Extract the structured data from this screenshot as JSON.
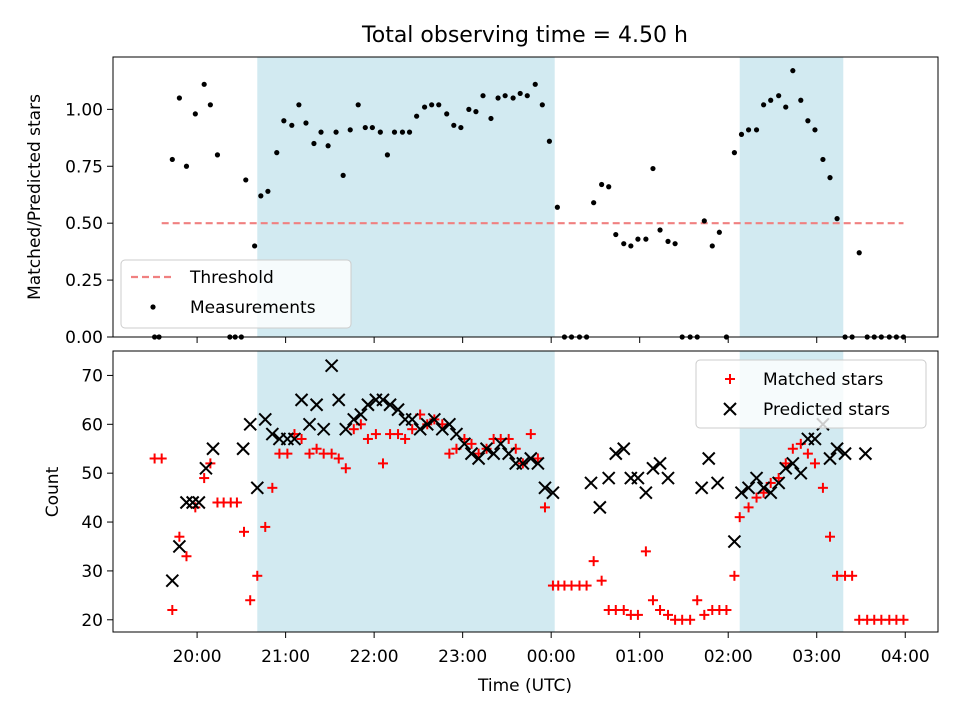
{
  "chart_data": [
    {
      "type": "scatter",
      "title": "Total observing time = 4.50 h",
      "ylabel": "Matched/Predicted stars",
      "xlabel": "",
      "ylim": [
        0,
        1.23
      ],
      "yticks": [
        "0.00",
        "0.25",
        "0.50",
        "0.75",
        "1.00"
      ],
      "ytick_values": [
        0,
        0.25,
        0.5,
        0.75,
        1.0
      ],
      "legend_position": "lower-left",
      "grid": false,
      "shaded_intervals_hours": [
        [
          20.68,
          24.04
        ],
        [
          26.13,
          27.3
        ]
      ],
      "threshold": {
        "name": "Threshold",
        "y": 0.5,
        "x_range": [
          19.6,
          27.98
        ],
        "color": "#f08080"
      },
      "series": [
        {
          "name": "Measurements",
          "color": "#000000",
          "x": [
            19.52,
            19.57,
            19.72,
            19.8,
            19.88,
            19.98,
            20.08,
            20.15,
            20.23,
            20.37,
            20.43,
            20.5,
            20.55,
            20.65,
            20.72,
            20.8,
            20.9,
            20.98,
            21.07,
            21.15,
            21.23,
            21.32,
            21.4,
            21.48,
            21.57,
            21.65,
            21.73,
            21.82,
            21.9,
            21.98,
            22.07,
            22.15,
            22.23,
            22.32,
            22.4,
            22.48,
            22.57,
            22.65,
            22.73,
            22.82,
            22.9,
            22.98,
            23.07,
            23.15,
            23.23,
            23.32,
            23.4,
            23.48,
            23.57,
            23.65,
            23.73,
            23.82,
            23.9,
            23.98,
            24.07,
            24.15,
            24.23,
            24.32,
            24.4,
            24.48,
            24.57,
            24.65,
            24.73,
            24.82,
            24.9,
            24.98,
            25.07,
            25.15,
            25.23,
            25.32,
            25.4,
            25.48,
            25.57,
            25.65,
            25.73,
            25.82,
            25.9,
            25.98,
            26.07,
            26.15,
            26.23,
            26.32,
            26.4,
            26.48,
            26.57,
            26.65,
            26.73,
            26.82,
            26.9,
            26.98,
            27.07,
            27.15,
            27.23,
            27.32,
            27.4,
            27.48,
            27.57,
            27.65,
            27.73,
            27.82,
            27.9,
            27.98
          ],
          "y": [
            0.0,
            0.0,
            0.78,
            1.05,
            0.75,
            0.98,
            1.11,
            1.02,
            0.8,
            0.0,
            0.0,
            0.0,
            0.69,
            0.4,
            0.62,
            0.64,
            0.81,
            0.95,
            0.93,
            1.02,
            0.94,
            0.85,
            0.9,
            0.84,
            0.9,
            0.71,
            0.91,
            1.02,
            0.92,
            0.92,
            0.9,
            0.8,
            0.9,
            0.9,
            0.9,
            0.97,
            1.01,
            1.02,
            1.02,
            0.98,
            0.93,
            0.92,
            1.0,
            0.99,
            1.06,
            0.96,
            1.05,
            1.06,
            1.05,
            1.07,
            1.06,
            1.11,
            1.02,
            0.86,
            0.57,
            0.0,
            0.0,
            0.0,
            0.0,
            0.59,
            0.67,
            0.66,
            0.45,
            0.41,
            0.4,
            0.43,
            0.43,
            0.74,
            0.47,
            0.42,
            0.41,
            0.0,
            0.0,
            0.0,
            0.51,
            0.4,
            0.46,
            0.0,
            0.81,
            0.89,
            0.91,
            0.91,
            1.02,
            1.04,
            1.06,
            1.01,
            1.17,
            1.04,
            0.95,
            0.91,
            0.78,
            0.7,
            0.52,
            0.0,
            0.0,
            0.37,
            0.0,
            0.0,
            0.0,
            0.0,
            0.0,
            0.0
          ]
        }
      ]
    },
    {
      "type": "scatter",
      "title": "",
      "xlabel": "Time (UTC)",
      "ylabel": "Count",
      "ylim": [
        17.5,
        75
      ],
      "yticks": [
        "20",
        "30",
        "40",
        "50",
        "60",
        "70"
      ],
      "ytick_values": [
        20,
        30,
        40,
        50,
        60,
        70
      ],
      "xlim_hours": [
        19.05,
        28.37
      ],
      "xticks": [
        "20:00",
        "21:00",
        "22:00",
        "23:00",
        "00:00",
        "01:00",
        "02:00",
        "03:00",
        "04:00"
      ],
      "xtick_values_hours": [
        20,
        21,
        22,
        23,
        24,
        25,
        26,
        27,
        28
      ],
      "legend_position": "upper-right",
      "grid": false,
      "shaded_intervals_hours": [
        [
          20.68,
          24.04
        ],
        [
          26.13,
          27.3
        ]
      ],
      "series": [
        {
          "name": "Matched stars",
          "marker": "+",
          "color": "#ff0000",
          "x": [
            19.52,
            19.6,
            19.72,
            19.8,
            19.88,
            19.98,
            20.08,
            20.15,
            20.23,
            20.3,
            20.38,
            20.45,
            20.53,
            20.6,
            20.68,
            20.77,
            20.85,
            20.93,
            21.02,
            21.1,
            21.18,
            21.27,
            21.35,
            21.43,
            21.52,
            21.6,
            21.68,
            21.77,
            21.85,
            21.93,
            22.02,
            22.1,
            22.18,
            22.27,
            22.35,
            22.43,
            22.52,
            22.6,
            22.68,
            22.77,
            22.85,
            22.93,
            23.02,
            23.1,
            23.18,
            23.27,
            23.35,
            23.43,
            23.52,
            23.6,
            23.68,
            23.77,
            23.85,
            23.93,
            24.02,
            24.08,
            24.15,
            24.23,
            24.32,
            24.4,
            24.48,
            24.57,
            24.65,
            24.73,
            24.82,
            24.9,
            24.98,
            25.07,
            25.15,
            25.23,
            25.32,
            25.4,
            25.48,
            25.57,
            25.65,
            25.73,
            25.82,
            25.9,
            25.98,
            26.07,
            26.13,
            26.23,
            26.32,
            26.4,
            26.48,
            26.57,
            26.65,
            26.73,
            26.82,
            26.9,
            26.98,
            27.07,
            27.15,
            27.23,
            27.32,
            27.4,
            27.48,
            27.57,
            27.65,
            27.73,
            27.82,
            27.9,
            27.98
          ],
          "y": [
            53,
            53,
            22,
            37,
            33,
            43,
            49,
            52,
            44,
            44,
            44,
            44,
            38,
            24,
            29,
            39,
            47,
            54,
            54,
            58,
            57,
            54,
            55,
            54,
            54,
            53,
            51,
            59,
            60,
            57,
            58,
            52,
            58,
            58,
            57,
            59,
            62,
            60,
            61,
            60,
            54,
            55,
            57,
            56,
            54,
            55,
            57,
            57,
            57,
            55,
            52,
            58,
            53,
            43,
            27,
            27,
            27,
            27,
            27,
            27,
            32,
            28,
            22,
            22,
            22,
            21,
            21,
            34,
            24,
            22,
            21,
            20,
            20,
            20,
            24,
            21,
            22,
            22,
            22,
            29,
            41,
            43,
            45,
            46,
            48,
            49,
            52,
            55,
            56,
            54,
            52,
            47,
            37,
            29,
            29,
            29,
            20,
            20,
            20,
            20,
            20,
            20,
            20
          ]
        },
        {
          "name": "Predicted stars",
          "marker": "x",
          "color": "#000000",
          "x": [
            19.72,
            19.8,
            19.88,
            19.95,
            20.02,
            20.1,
            20.18,
            20.52,
            20.6,
            20.68,
            20.77,
            20.85,
            20.93,
            21.02,
            21.1,
            21.18,
            21.27,
            21.35,
            21.43,
            21.52,
            21.6,
            21.68,
            21.77,
            21.85,
            21.93,
            22.02,
            22.1,
            22.18,
            22.27,
            22.35,
            22.43,
            22.52,
            22.6,
            22.68,
            22.77,
            22.85,
            22.93,
            23.02,
            23.1,
            23.18,
            23.27,
            23.35,
            23.43,
            23.52,
            23.6,
            23.68,
            23.77,
            23.85,
            23.93,
            24.02,
            24.45,
            24.55,
            24.65,
            24.73,
            24.82,
            24.9,
            24.98,
            25.07,
            25.15,
            25.23,
            25.32,
            25.7,
            25.78,
            25.88,
            26.07,
            26.15,
            26.23,
            26.32,
            26.4,
            26.48,
            26.57,
            26.65,
            26.73,
            26.82,
            26.9,
            26.98,
            27.07,
            27.15,
            27.23,
            27.32,
            27.55
          ],
          "y": [
            28,
            35,
            44,
            44,
            44,
            51,
            55,
            55,
            60,
            47,
            61,
            58,
            57,
            57,
            57,
            65,
            60,
            64,
            59,
            72,
            65,
            59,
            61,
            62,
            64,
            65,
            65,
            64,
            63,
            61,
            61,
            59,
            60,
            61,
            59,
            60,
            58,
            56,
            54,
            53,
            55,
            54,
            56,
            54,
            52,
            52,
            53,
            52,
            47,
            46,
            48,
            43,
            49,
            54,
            55,
            49,
            49,
            46,
            51,
            52,
            49,
            47,
            53,
            48,
            36,
            46,
            47,
            49,
            47,
            46,
            48,
            51,
            52,
            50,
            57,
            57,
            60,
            53,
            55,
            54,
            54
          ]
        }
      ]
    }
  ],
  "colors": {
    "shade": "#add8e6",
    "threshold": "#f08080",
    "matched": "#ff0000",
    "predicted": "#000000"
  }
}
